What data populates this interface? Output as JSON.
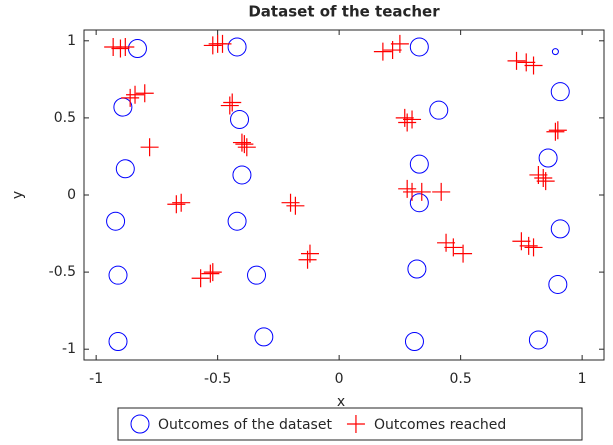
{
  "chart_data": {
    "type": "scatter",
    "title": "Dataset of the teacher",
    "x_label": "x",
    "y_label": "y",
    "xlim": [
      -1.05,
      1.09
    ],
    "ylim": [
      -1.07,
      1.07
    ],
    "xticks": [
      -1,
      -0.5,
      0,
      0.5,
      1
    ],
    "yticks": [
      -1,
      -0.5,
      0,
      0.5,
      1
    ],
    "legend": "bottom",
    "series": [
      {
        "name": "Outcomes of the dataset",
        "marker": "circle",
        "color": "#0000ff",
        "x": [
          -0.83,
          -0.42,
          0.33,
          0.89,
          0.91,
          -0.89,
          -0.41,
          0.41,
          0.86,
          -0.88,
          -0.4,
          0.33,
          0.33,
          -0.92,
          -0.42,
          0.91,
          -0.91,
          -0.34,
          0.32,
          0.9,
          -0.91,
          -0.31,
          0.31,
          0.82
        ],
        "y": [
          0.95,
          0.96,
          0.96,
          0.93,
          0.67,
          0.57,
          0.49,
          0.55,
          0.24,
          0.17,
          0.13,
          0.2,
          -0.05,
          -0.17,
          -0.17,
          -0.22,
          -0.52,
          -0.52,
          -0.48,
          -0.58,
          -0.95,
          -0.92,
          -0.95,
          -0.94
        ],
        "sizes": [
          9,
          9,
          9,
          3,
          9,
          9,
          9,
          9,
          9,
          9,
          9,
          9,
          9,
          9,
          9,
          9,
          9,
          9,
          9,
          9,
          9,
          9,
          9,
          9
        ]
      },
      {
        "name": "Outcomes reached",
        "marker": "plus",
        "color": "#ff0000",
        "x": [
          -0.93,
          -0.88,
          -0.9,
          -0.5,
          -0.52,
          -0.48,
          0.18,
          0.25,
          0.22,
          0.73,
          0.8,
          0.77,
          -0.84,
          -0.8,
          -0.86,
          -0.45,
          -0.44,
          0.27,
          0.28,
          0.3,
          0.89,
          0.9,
          -0.78,
          -0.39,
          -0.38,
          -0.4,
          0.82,
          0.85,
          0.84,
          0.28,
          0.3,
          0.34,
          0.42,
          -0.67,
          -0.65,
          -0.18,
          -0.2,
          0.44,
          0.47,
          0.51,
          0.75,
          0.78,
          0.8,
          -0.52,
          -0.57,
          -0.53,
          -0.13,
          -0.12
        ],
        "y": [
          0.96,
          0.96,
          0.95,
          0.98,
          0.97,
          0.98,
          0.93,
          0.98,
          0.94,
          0.87,
          0.84,
          0.86,
          0.65,
          0.66,
          0.63,
          0.58,
          0.6,
          0.5,
          0.47,
          0.49,
          0.41,
          0.42,
          0.31,
          0.33,
          0.31,
          0.34,
          0.13,
          0.09,
          0.11,
          0.04,
          0.02,
          0.02,
          0.02,
          -0.06,
          -0.05,
          -0.07,
          -0.05,
          -0.31,
          -0.34,
          -0.38,
          -0.3,
          -0.33,
          -0.34,
          -0.5,
          -0.54,
          -0.51,
          -0.42,
          -0.38
        ]
      }
    ]
  }
}
